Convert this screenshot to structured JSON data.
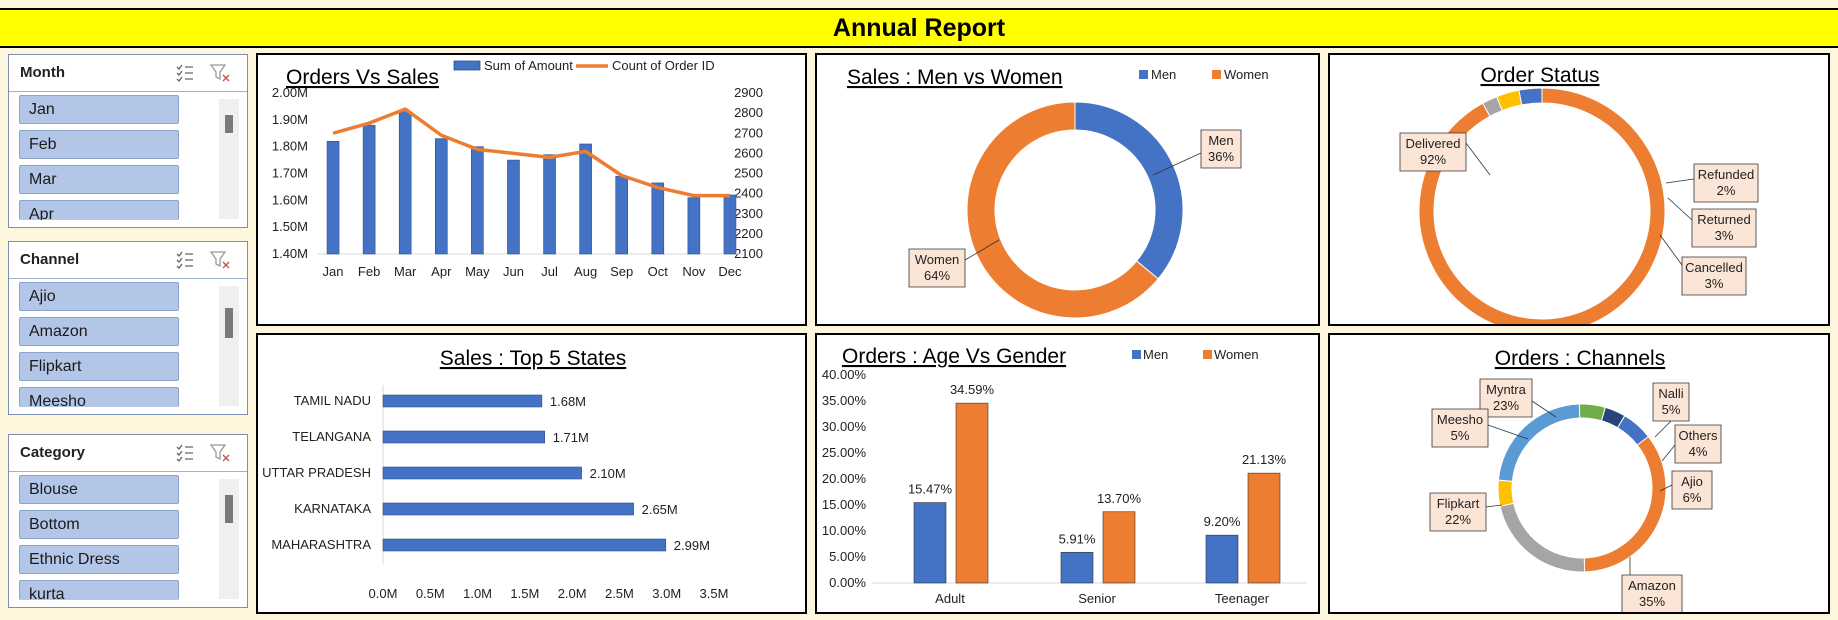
{
  "header": {
    "title": "Annual Report"
  },
  "slicers": {
    "month": {
      "title": "Month",
      "items": [
        "Jan",
        "Feb",
        "Mar",
        "Apr"
      ]
    },
    "channel": {
      "title": "Channel",
      "items": [
        "Ajio",
        "Amazon",
        "Flipkart",
        "Meesho"
      ]
    },
    "category": {
      "title": "Category",
      "items": [
        "Blouse",
        "Bottom",
        "Ethnic Dress",
        "kurta"
      ]
    }
  },
  "chart_data": [
    {
      "id": "orders_vs_sales",
      "type": "bar+line",
      "title": "Orders Vs Sales",
      "categories": [
        "Jan",
        "Feb",
        "Mar",
        "Apr",
        "May",
        "Jun",
        "Jul",
        "Aug",
        "Sep",
        "Oct",
        "Nov",
        "Dec"
      ],
      "series": [
        {
          "name": "Sum of Amount",
          "type": "bar",
          "axis": "left",
          "values": [
            1.82,
            1.88,
            1.93,
            1.83,
            1.8,
            1.75,
            1.77,
            1.81,
            1.69,
            1.665,
            1.61,
            1.62
          ],
          "color": "#4472c4"
        },
        {
          "name": "Count of Order ID",
          "type": "line",
          "axis": "right",
          "values": [
            2700,
            2750,
            2820,
            2690,
            2620,
            2600,
            2580,
            2610,
            2490,
            2430,
            2390,
            2390
          ],
          "color": "#ed7d31"
        }
      ],
      "y_left_ticks": [
        "2.00M",
        "1.90M",
        "1.80M",
        "1.70M",
        "1.60M",
        "1.50M",
        "1.40M"
      ],
      "ylim_left": [
        1.4,
        2.0
      ],
      "y_right_ticks": [
        "2900",
        "2800",
        "2700",
        "2600",
        "2500",
        "2400",
        "2300",
        "2200",
        "2100"
      ],
      "ylim_right": [
        2100,
        2900
      ],
      "legend": "top"
    },
    {
      "id": "sales_men_women",
      "type": "donut",
      "title": "Sales : Men vs Women",
      "slices": [
        {
          "name": "Men",
          "pct": 36,
          "label": "36%",
          "color": "#4472c4"
        },
        {
          "name": "Women",
          "pct": 64,
          "label": "64%",
          "color": "#ed7d31"
        }
      ],
      "legend": "top-right"
    },
    {
      "id": "order_status",
      "type": "donut",
      "title": "Order Status",
      "slices": [
        {
          "name": "Delivered",
          "pct": 92,
          "label": "92%",
          "color": "#ed7d31"
        },
        {
          "name": "Refunded",
          "pct": 2,
          "label": "2%",
          "color": "#a5a5a5"
        },
        {
          "name": "Returned",
          "pct": 3,
          "label": "3%",
          "color": "#ffc000"
        },
        {
          "name": "Cancelled",
          "pct": 3,
          "label": "3%",
          "color": "#4472c4"
        }
      ]
    },
    {
      "id": "top5_states",
      "type": "bar",
      "orientation": "horizontal",
      "title": "Sales : Top 5 States",
      "categories": [
        "TAMIL NADU",
        "TELANGANA",
        "UTTAR PRADESH",
        "KARNATAKA",
        "MAHARASHTRA"
      ],
      "values": [
        1.68,
        1.71,
        2.1,
        2.65,
        2.99
      ],
      "value_labels": [
        "1.68M",
        "1.71M",
        "2.10M",
        "2.65M",
        "2.99M"
      ],
      "x_ticks": [
        "0.0M",
        "0.5M",
        "1.0M",
        "1.5M",
        "2.0M",
        "2.5M",
        "3.0M",
        "3.5M"
      ],
      "xlim": [
        0,
        3.5
      ],
      "color": "#4472c4"
    },
    {
      "id": "age_vs_gender",
      "type": "bar",
      "title": "Orders : Age Vs Gender",
      "categories": [
        "Adult",
        "Senior",
        "Teenager"
      ],
      "series": [
        {
          "name": "Men",
          "values": [
            15.47,
            5.91,
            9.2
          ],
          "labels": [
            "15.47%",
            "5.91%",
            "9.20%"
          ],
          "color": "#4472c4"
        },
        {
          "name": "Women",
          "values": [
            34.59,
            13.7,
            21.13
          ],
          "labels": [
            "34.59%",
            "13.70%",
            "21.13%"
          ],
          "color": "#ed7d31"
        }
      ],
      "y_ticks": [
        "40.00%",
        "35.00%",
        "30.00%",
        "25.00%",
        "20.00%",
        "15.00%",
        "10.00%",
        "5.00%",
        "0.00%"
      ],
      "ylim": [
        0,
        40
      ],
      "legend": "top"
    },
    {
      "id": "orders_channels",
      "type": "donut",
      "title": "Orders : Channels",
      "slices": [
        {
          "name": "Myntra",
          "pct": 23,
          "label": "23%",
          "color": "#5b9bd5"
        },
        {
          "name": "Nalli",
          "pct": 5,
          "label": "5%",
          "color": "#70ad47"
        },
        {
          "name": "Others",
          "pct": 4,
          "label": "4%",
          "color": "#264478"
        },
        {
          "name": "Ajio",
          "pct": 6,
          "label": "6%",
          "color": "#4472c4"
        },
        {
          "name": "Amazon",
          "pct": 35,
          "label": "35%",
          "color": "#ed7d31"
        },
        {
          "name": "Flipkart",
          "pct": 22,
          "label": "22%",
          "color": "#a5a5a5"
        },
        {
          "name": "Meesho",
          "pct": 5,
          "label": "5%",
          "color": "#ffc000"
        }
      ]
    }
  ]
}
